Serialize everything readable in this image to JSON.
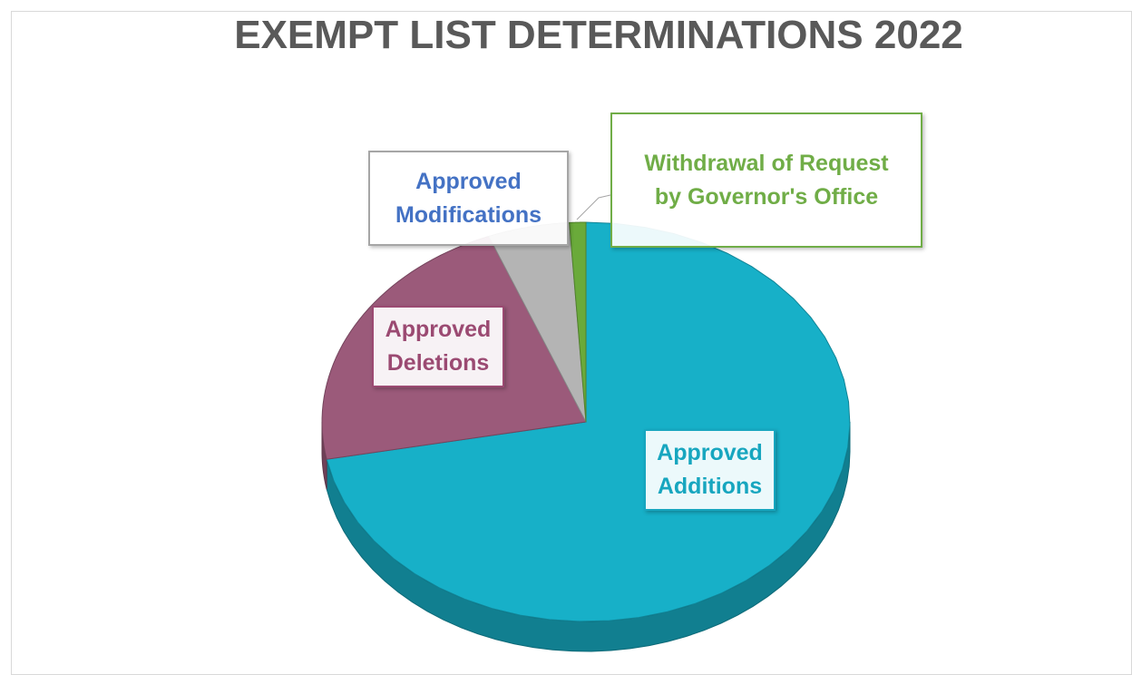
{
  "chart_data": {
    "type": "pie",
    "title": "EXEMPT LIST DETERMINATIONS 2022",
    "categories": [
      "Approved Additions",
      "Approved Deletions",
      "Approved Modifications",
      "Withdrawal of Request by Governor's Office"
    ],
    "values": [
      72,
      22,
      5,
      1
    ],
    "colors": [
      "#17b0c8",
      "#9b5a7a",
      "#b4b4b4",
      "#6aaa3a"
    ],
    "label_colors": [
      "#17a6bf",
      "#9b4a72",
      "#4472c4",
      "#70ad47"
    ]
  }
}
